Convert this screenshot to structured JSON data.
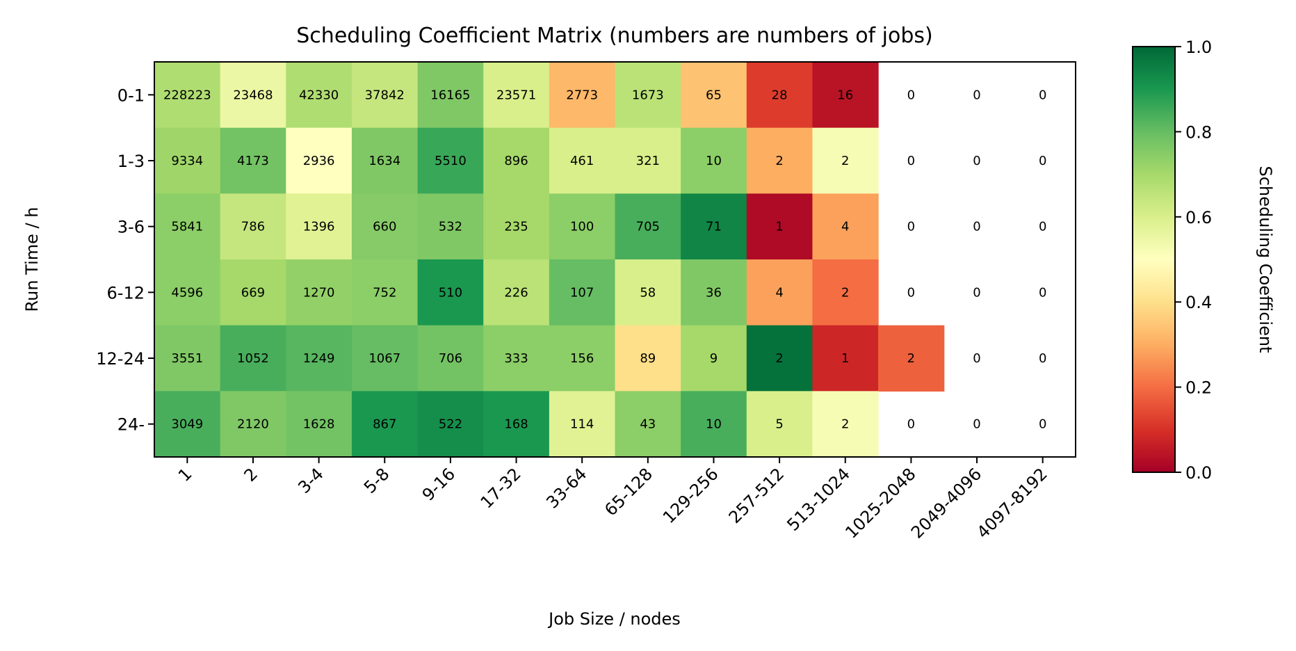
{
  "chart_data": {
    "type": "heatmap",
    "title": "Scheduling Coefficient Matrix (numbers are numbers of jobs)",
    "xlabel": "Job Size / nodes",
    "ylabel": "Run Time / h",
    "colorbar_label": "Scheduling Coefficient",
    "colormap": "RdYlGn",
    "clim": [
      0,
      1
    ],
    "colorbar_ticks": [
      "0.0",
      "0.2",
      "0.4",
      "0.6",
      "0.8",
      "1.0"
    ],
    "x_categories": [
      "1",
      "2",
      "3-4",
      "5-8",
      "9-16",
      "17-32",
      "33-64",
      "65-128",
      "129-256",
      "257-512",
      "513-1024",
      "1025-2048",
      "2049-4096",
      "4097-8192"
    ],
    "y_categories": [
      "0-1",
      "1-3",
      "3-6",
      "6-12",
      "12-24",
      "24-"
    ],
    "job_counts": [
      [
        228223,
        23468,
        42330,
        37842,
        16165,
        23571,
        2773,
        1673,
        65,
        28,
        16,
        0,
        0,
        0
      ],
      [
        9334,
        4173,
        2936,
        1634,
        5510,
        896,
        461,
        321,
        10,
        2,
        2,
        0,
        0,
        0
      ],
      [
        5841,
        786,
        1396,
        660,
        532,
        235,
        100,
        705,
        71,
        1,
        4,
        0,
        0,
        0
      ],
      [
        4596,
        669,
        1270,
        752,
        510,
        226,
        107,
        58,
        36,
        4,
        2,
        0,
        0,
        0
      ],
      [
        3551,
        1052,
        1249,
        1067,
        706,
        333,
        156,
        89,
        9,
        2,
        1,
        2,
        0,
        0
      ],
      [
        3049,
        2120,
        1628,
        867,
        522,
        168,
        114,
        43,
        10,
        5,
        2,
        0,
        0,
        0
      ]
    ],
    "coefficients": [
      [
        0.68,
        0.55,
        0.68,
        0.64,
        0.76,
        0.6,
        0.32,
        0.66,
        0.34,
        0.12,
        0.04,
        null,
        null,
        null
      ],
      [
        0.71,
        0.78,
        0.5,
        0.76,
        0.86,
        0.7,
        0.6,
        0.6,
        0.74,
        0.3,
        0.52,
        null,
        null,
        null
      ],
      [
        0.74,
        0.64,
        0.58,
        0.75,
        0.76,
        0.7,
        0.74,
        0.84,
        0.94,
        0.02,
        0.28,
        null,
        null,
        null
      ],
      [
        0.74,
        0.7,
        0.73,
        0.74,
        0.9,
        0.66,
        0.8,
        0.6,
        0.76,
        0.28,
        0.2,
        null,
        null,
        null
      ],
      [
        0.76,
        0.84,
        0.82,
        0.8,
        0.78,
        0.74,
        0.74,
        0.4,
        0.7,
        0.98,
        0.08,
        0.18,
        null,
        null
      ],
      [
        0.84,
        0.76,
        0.78,
        0.9,
        0.92,
        0.9,
        0.58,
        0.74,
        0.84,
        0.6,
        0.52,
        null,
        null,
        null
      ]
    ]
  }
}
